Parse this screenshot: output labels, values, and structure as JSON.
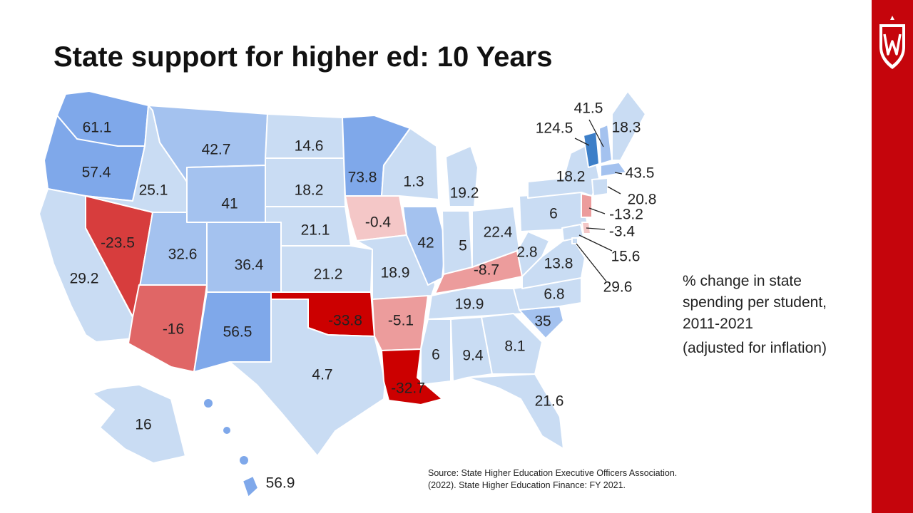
{
  "slide": {
    "title": "State support for higher ed: 10 Years",
    "caption_lines": [
      "% change in state",
      "spending per student,",
      "2011-2021"
    ],
    "caption_note": "(adjusted for inflation)",
    "source_lines": [
      "Source: State Higher Education Executive Officers Association.",
      "(2022). State Higher Education Finance: FY 2021."
    ]
  },
  "colors": {
    "accent_bar": "#c5050c",
    "deep_red": "#cc0000",
    "red": "#d73d3d",
    "mid_red": "#e06666",
    "light_red": "#ec9c9c",
    "pale_red": "#f4c7c7",
    "pale_blue": "#c9dcf3",
    "light_blue": "#a4c2ef",
    "mid_blue": "#7fa8ea",
    "dark_blue": "#3d7fc8"
  },
  "legend_icon": "uw-crest-icon",
  "map_data": {
    "metric": "% change in state spending per student, 2011-2021",
    "states": [
      {
        "state": "WA",
        "value": "61.1"
      },
      {
        "state": "OR",
        "value": "57.4"
      },
      {
        "state": "CA",
        "value": "29.2"
      },
      {
        "state": "NV",
        "value": "-23.5"
      },
      {
        "state": "ID",
        "value": "25.1"
      },
      {
        "state": "MT",
        "value": "42.7"
      },
      {
        "state": "WY",
        "value": "41"
      },
      {
        "state": "UT",
        "value": "32.6"
      },
      {
        "state": "AZ",
        "value": "-16"
      },
      {
        "state": "CO",
        "value": "36.4"
      },
      {
        "state": "NM",
        "value": "56.5"
      },
      {
        "state": "ND",
        "value": "14.6"
      },
      {
        "state": "SD",
        "value": "18.2"
      },
      {
        "state": "NE",
        "value": "21.1"
      },
      {
        "state": "KS",
        "value": "21.2"
      },
      {
        "state": "OK",
        "value": "-33.8"
      },
      {
        "state": "TX",
        "value": "4.7"
      },
      {
        "state": "MN",
        "value": "73.8"
      },
      {
        "state": "IA",
        "value": "-0.4"
      },
      {
        "state": "MO",
        "value": "18.9"
      },
      {
        "state": "AR",
        "value": "-5.1"
      },
      {
        "state": "LA",
        "value": "-32.7"
      },
      {
        "state": "WI",
        "value": "1.3"
      },
      {
        "state": "IL",
        "value": "42"
      },
      {
        "state": "MI",
        "value": "19.2"
      },
      {
        "state": "IN",
        "value": "5"
      },
      {
        "state": "OH",
        "value": "22.4"
      },
      {
        "state": "KY",
        "value": "-8.7"
      },
      {
        "state": "TN",
        "value": "19.9"
      },
      {
        "state": "MS",
        "value": "6"
      },
      {
        "state": "AL",
        "value": "9.4"
      },
      {
        "state": "GA",
        "value": "8.1"
      },
      {
        "state": "FL",
        "value": "21.6"
      },
      {
        "state": "SC",
        "value": "35"
      },
      {
        "state": "NC",
        "value": "6.8"
      },
      {
        "state": "VA",
        "value": "13.8"
      },
      {
        "state": "WV",
        "value": "2.8"
      },
      {
        "state": "PA",
        "value": "6"
      },
      {
        "state": "NY",
        "value": "18.2"
      },
      {
        "state": "VT",
        "value": "124.5"
      },
      {
        "state": "NH",
        "value": "41.5"
      },
      {
        "state": "ME",
        "value": "18.3"
      },
      {
        "state": "MA",
        "value": "43.5"
      },
      {
        "state": "CT",
        "value": "20.8"
      },
      {
        "state": "NJ",
        "value": "-13.2"
      },
      {
        "state": "DE",
        "value": "-3.4"
      },
      {
        "state": "MD",
        "value": "15.6"
      },
      {
        "state": "DC",
        "value": "29.6"
      },
      {
        "state": "AK",
        "value": "16"
      },
      {
        "state": "HI",
        "value": "56.9"
      }
    ]
  }
}
